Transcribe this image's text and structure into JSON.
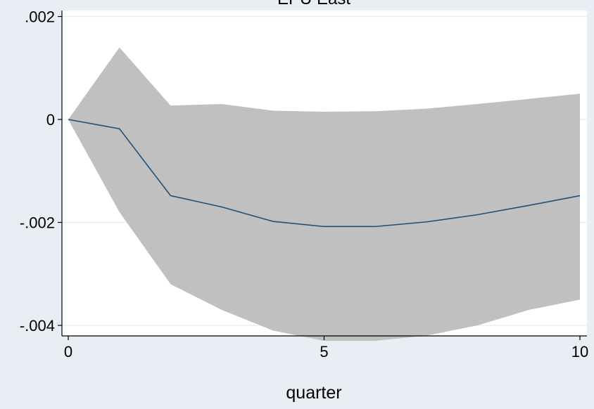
{
  "chart_data": {
    "type": "area",
    "title": "EPU East",
    "xlabel": "quarter",
    "ylabel": "",
    "xlim": [
      0,
      10
    ],
    "ylim": [
      -0.0044,
      0.0021
    ],
    "x_ticks": [
      0,
      5,
      10
    ],
    "x_tick_labels": [
      "0",
      "5",
      "10"
    ],
    "y_ticks": [
      0.002,
      0,
      -0.002,
      -0.004
    ],
    "y_tick_labels": [
      ".002",
      "0",
      "-.002",
      "-.004"
    ],
    "grid": true,
    "legend": "none",
    "series": [
      {
        "role": "confidence-band",
        "x": [
          0,
          1,
          2,
          3,
          4,
          5,
          6,
          7,
          8,
          9,
          10
        ],
        "upper": [
          0,
          0.0014,
          0.00027,
          0.0003,
          0.00017,
          0.00015,
          0.00016,
          0.00021,
          0.0003,
          0.0004,
          0.0005
        ],
        "lower": [
          0,
          -0.0018,
          -0.0032,
          -0.0037,
          -0.0041,
          -0.0043,
          -0.0043,
          -0.0042,
          -0.004,
          -0.0037,
          -0.0035
        ],
        "color": "#c0c0c0"
      },
      {
        "role": "irf-line",
        "x": [
          0,
          1,
          2,
          3,
          4,
          5,
          6,
          7,
          8,
          9,
          10
        ],
        "y": [
          0,
          -0.00018,
          -0.00148,
          -0.0017,
          -0.00198,
          -0.00208,
          -0.00208,
          -0.00199,
          -0.00185,
          -0.00167,
          -0.00148
        ],
        "color": "#1f4e79"
      }
    ],
    "colors": {
      "plot_background": "#ffffff",
      "outer_background": "#e8eef3",
      "grid": "#e6edf2",
      "band": "#c0c0c0",
      "line": "#1f4e79",
      "axis": "#000000"
    }
  }
}
